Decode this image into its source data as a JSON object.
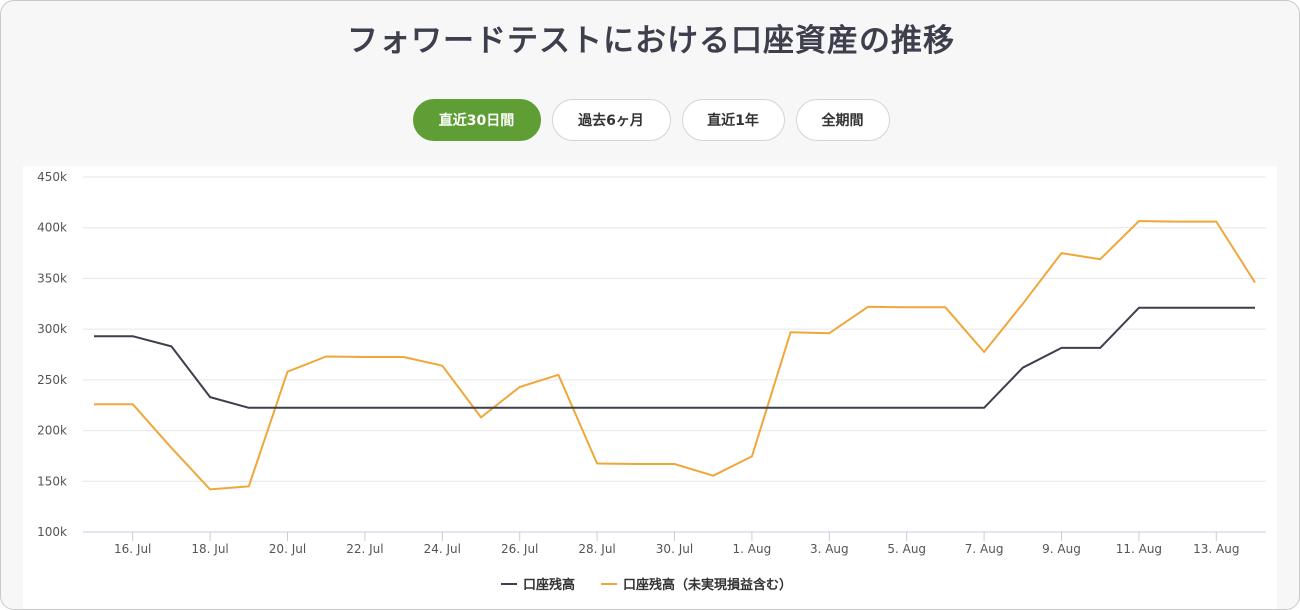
{
  "title": "フォワードテストにおける口座資産の推移",
  "tabs": [
    {
      "label": "直近30日間",
      "active": true
    },
    {
      "label": "過去6ヶ月",
      "active": false
    },
    {
      "label": "直近1年",
      "active": false
    },
    {
      "label": "全期間",
      "active": false
    }
  ],
  "colors": {
    "accent": "#5f9e35",
    "balance": "#3d3f4d",
    "equity": "#f0a73a"
  },
  "chart_data": {
    "type": "line",
    "title": "フォワードテストにおける口座資産の推移",
    "xlabel": "",
    "ylabel": "",
    "ylim": [
      100000,
      450000
    ],
    "y_ticks": [
      100000,
      150000,
      200000,
      250000,
      300000,
      350000,
      400000,
      450000
    ],
    "y_tick_labels": [
      "100k",
      "150k",
      "200k",
      "250k",
      "300k",
      "350k",
      "400k",
      "450k"
    ],
    "x": [
      "15 Jul",
      "16 Jul",
      "17 Jul",
      "18 Jul",
      "19 Jul",
      "20 Jul",
      "21 Jul",
      "22 Jul",
      "23 Jul",
      "24 Jul",
      "25 Jul",
      "26 Jul",
      "27 Jul",
      "28 Jul",
      "29 Jul",
      "30 Jul",
      "31 Jul",
      "1 Aug",
      "2 Aug",
      "3 Aug",
      "4 Aug",
      "5 Aug",
      "6 Aug",
      "7 Aug",
      "8 Aug",
      "9 Aug",
      "10 Aug",
      "11 Aug",
      "12 Aug",
      "13 Aug",
      "14 Aug"
    ],
    "x_tick_labels": [
      "16. Jul",
      "18. Jul",
      "20. Jul",
      "22. Jul",
      "24. Jul",
      "26. Jul",
      "28. Jul",
      "30. Jul",
      "1. Aug",
      "3. Aug",
      "5. Aug",
      "7. Aug",
      "9. Aug",
      "11. Aug",
      "13. Aug"
    ],
    "grid": true,
    "legend": "bottom-center",
    "series": [
      {
        "name": "口座残高",
        "color": "#3d3f4d",
        "values": [
          293000,
          293000,
          283000,
          233000,
          222500,
          222500,
          222500,
          222500,
          222500,
          222500,
          222500,
          222500,
          222500,
          222500,
          222500,
          222500,
          222500,
          222500,
          222500,
          222500,
          222500,
          222500,
          222500,
          222500,
          262000,
          281500,
          281500,
          321000,
          321000,
          321000,
          321000
        ]
      },
      {
        "name": "口座残高（未実現損益含む）",
        "color": "#f0a73a",
        "values": [
          226000,
          226000,
          183000,
          142000,
          145000,
          258000,
          273000,
          272500,
          272500,
          264000,
          213000,
          243000,
          255000,
          167500,
          167000,
          167000,
          155500,
          174500,
          297000,
          296000,
          322000,
          321500,
          321500,
          277500,
          325000,
          375000,
          369000,
          406500,
          406000,
          406000,
          346000
        ]
      }
    ]
  }
}
